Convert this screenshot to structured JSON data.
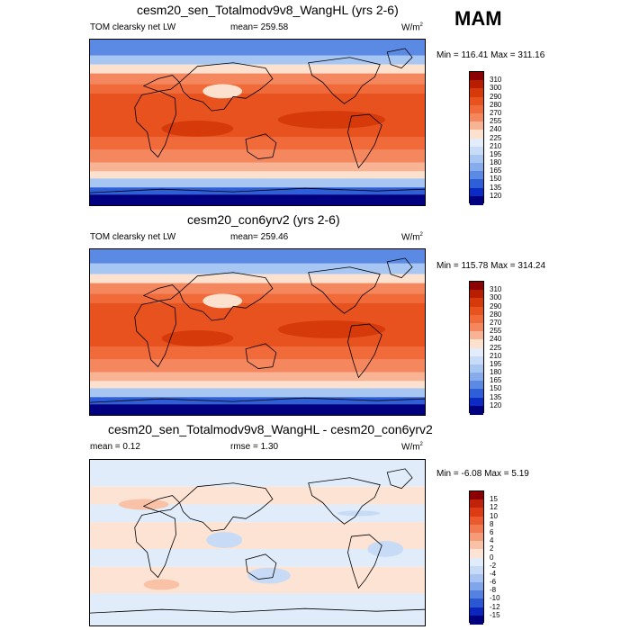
{
  "season": "MAM",
  "panels": [
    {
      "title": "cesm20_sen_Totalmodv9v8_WangHL (yrs 2-6)",
      "left_label": "TOM clearsky net LW",
      "mid_label": "mean= 259.58",
      "units": "W/m",
      "units_sup": "2",
      "minmax": "Min = 116.41 Max = 311.16",
      "levels": [
        "310",
        "300",
        "290",
        "280",
        "270",
        "255",
        "240",
        "225",
        "210",
        "195",
        "180",
        "165",
        "150",
        "135",
        "120"
      ],
      "colors": [
        "#8b0000",
        "#b81d00",
        "#d63a0a",
        "#e8521e",
        "#f06a3a",
        "#f4875e",
        "#f7b394",
        "#fde1cf",
        "#e2ecfa",
        "#c8dbf7",
        "#a8c6f2",
        "#86acec",
        "#5b8ae4",
        "#2f5fd8",
        "#0c2bc4",
        "#000080"
      ]
    },
    {
      "title": "cesm20_con6yrv2 (yrs 2-6)",
      "left_label": "TOM clearsky net LW",
      "mid_label": "mean= 259.46",
      "units": "W/m",
      "units_sup": "2",
      "minmax": "Min = 115.78 Max = 314.24",
      "levels": [
        "310",
        "300",
        "290",
        "280",
        "270",
        "255",
        "240",
        "225",
        "210",
        "195",
        "180",
        "165",
        "150",
        "135",
        "120"
      ],
      "colors": [
        "#8b0000",
        "#b81d00",
        "#d63a0a",
        "#e8521e",
        "#f06a3a",
        "#f4875e",
        "#f7b394",
        "#fde1cf",
        "#e2ecfa",
        "#c8dbf7",
        "#a8c6f2",
        "#86acec",
        "#5b8ae4",
        "#2f5fd8",
        "#0c2bc4",
        "#000080"
      ]
    },
    {
      "title": "cesm20_sen_Totalmodv9v8_WangHL - cesm20_con6yrv2",
      "left_label": "mean =   0.12",
      "mid_label": "rmse =   1.30",
      "units": "W/m",
      "units_sup": "2",
      "minmax": "Min =  -6.08 Max =   5.19",
      "levels": [
        "15",
        "12",
        "10",
        "8",
        "6",
        "4",
        "2",
        "0",
        "-2",
        "-4",
        "-6",
        "-8",
        "-10",
        "-12",
        "-15"
      ],
      "colors": [
        "#8b0000",
        "#c0220a",
        "#dc3b14",
        "#ea5a2e",
        "#f27a50",
        "#f69b78",
        "#f9c2a6",
        "#fde3d3",
        "#e1ecfb",
        "#c7dbf7",
        "#a6c3f1",
        "#7fa6ea",
        "#5582e0",
        "#2b57d3",
        "#0c25bd",
        "#000080"
      ]
    }
  ]
}
